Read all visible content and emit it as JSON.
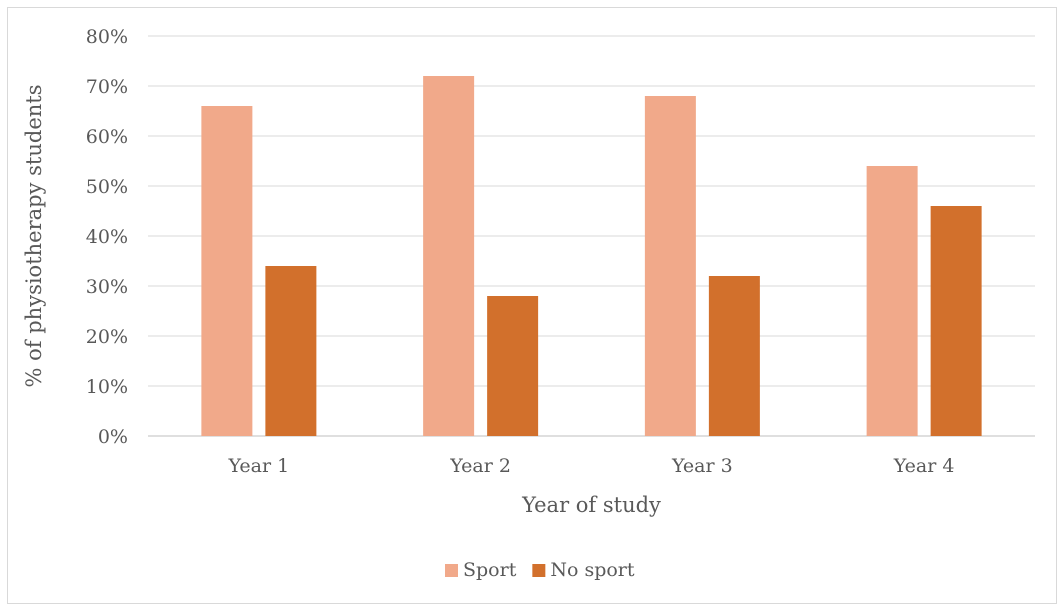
{
  "chart_data": {
    "type": "bar",
    "categories": [
      "Year 1",
      "Year 2",
      "Year 3",
      "Year 4"
    ],
    "series": [
      {
        "name": "Sport",
        "values": [
          66,
          72,
          68,
          54
        ],
        "color": "#f1a98a"
      },
      {
        "name": "No sport",
        "values": [
          34,
          28,
          32,
          46
        ],
        "color": "#d2702c"
      }
    ],
    "xlabel": "Year of study",
    "ylabel": "% of physiotherapy students",
    "ylim": [
      0,
      80
    ],
    "yticks": [
      0,
      10,
      20,
      30,
      40,
      50,
      60,
      70,
      80
    ],
    "ytick_labels": [
      "0%",
      "10%",
      "20%",
      "30%",
      "40%",
      "50%",
      "60%",
      "70%",
      "80%"
    ],
    "grid": true,
    "legend_position": "bottom"
  }
}
